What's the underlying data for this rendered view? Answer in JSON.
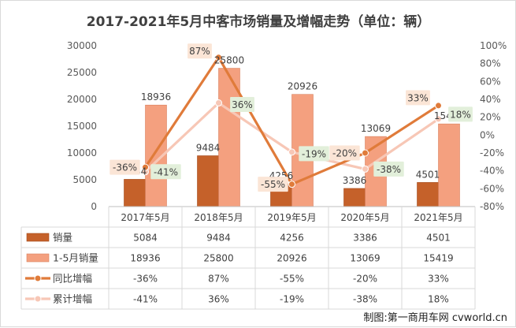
{
  "chart_data": {
    "type": "bar",
    "title": "2017-2021年5月中客市场销量及增幅走势（单位：辆）",
    "categories": [
      "2017年5月",
      "2018年5月",
      "2019年5月",
      "2020年5月",
      "2021年5月"
    ],
    "left_axis": {
      "min": 0,
      "max": 30000,
      "step": 5000,
      "ticks": [
        "0",
        "5000",
        "10000",
        "15000",
        "20000",
        "25000",
        "30000"
      ]
    },
    "right_axis": {
      "min": -80,
      "max": 100,
      "step": 20,
      "ticks": [
        "-80%",
        "-60%",
        "-40%",
        "-20%",
        "0%",
        "20%",
        "40%",
        "60%",
        "80%",
        "100%"
      ]
    },
    "series": [
      {
        "name": "销量",
        "kind": "bar",
        "axis": "left",
        "color": "#c5612a",
        "values": [
          5084,
          9484,
          4256,
          3386,
          4501
        ],
        "labels": [
          "5084",
          "9484",
          "4256",
          "3386",
          "4501"
        ]
      },
      {
        "name": "1-5月销量",
        "kind": "bar",
        "axis": "left",
        "color": "#f4a07f",
        "values": [
          18936,
          25800,
          20926,
          13069,
          15419
        ],
        "labels": [
          "18936",
          "25800",
          "20926",
          "13069",
          "15419"
        ]
      },
      {
        "name": "同比增幅",
        "kind": "line",
        "axis": "right",
        "color": "#e07b3a",
        "values": [
          -36,
          87,
          -55,
          -20,
          33
        ],
        "labels": [
          "-36%",
          "87%",
          "-55%",
          "-20%",
          "33%"
        ]
      },
      {
        "name": "累计增幅",
        "kind": "line",
        "axis": "right",
        "color": "#f7c7b6",
        "values": [
          -41,
          36,
          -19,
          -38,
          18
        ],
        "labels": [
          "-41%",
          "36%",
          "-19%",
          "-38%",
          "18%"
        ]
      }
    ],
    "legend": "data-table-below",
    "grid": false
  },
  "credit": "制图:第一商用车网 cvworld.cn"
}
